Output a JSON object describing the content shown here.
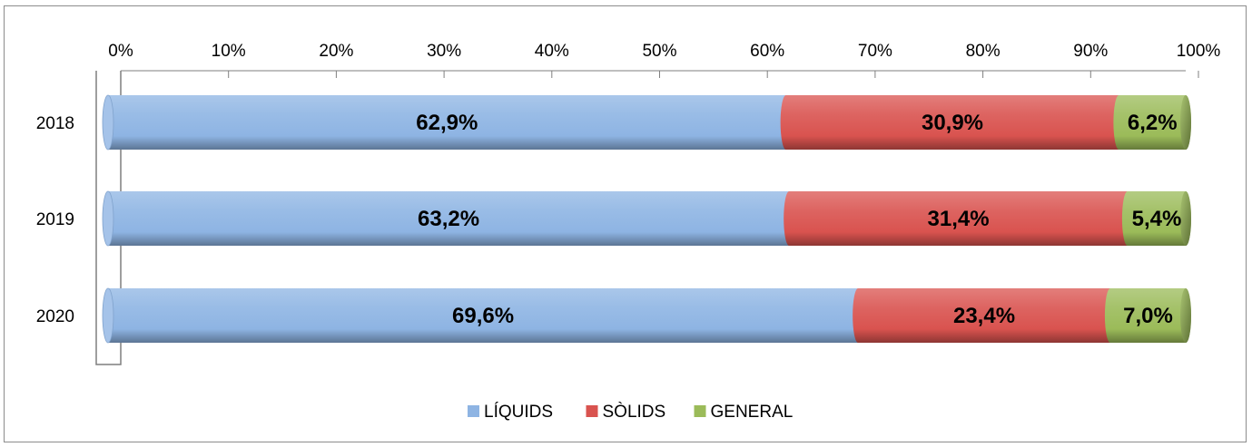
{
  "chart_data": {
    "type": "bar",
    "orientation": "horizontal",
    "stacked": "percent",
    "categories": [
      "2018",
      "2019",
      "2020"
    ],
    "series": [
      {
        "name": "LÍQUIDS",
        "color": "#8EB4E3",
        "values": [
          62.9,
          63.2,
          69.6
        ],
        "labels": [
          "62,9%",
          "63,2%",
          "69,6%"
        ]
      },
      {
        "name": "SÒLIDS",
        "color": "#D9534F",
        "values": [
          30.9,
          31.4,
          23.4
        ],
        "labels": [
          "30,9%",
          "31,4%",
          "23,4%"
        ]
      },
      {
        "name": "GENERAL",
        "color": "#9BBB59",
        "values": [
          6.2,
          5.4,
          7.0
        ],
        "labels": [
          "6,2%",
          "5,4%",
          "7,0%"
        ]
      }
    ],
    "x_ticks": [
      "0%",
      "10%",
      "20%",
      "30%",
      "40%",
      "50%",
      "60%",
      "70%",
      "80%",
      "90%",
      "100%"
    ],
    "xlim": [
      0,
      100
    ],
    "x_axis_position": "top",
    "legend_position": "bottom",
    "grid": false
  }
}
